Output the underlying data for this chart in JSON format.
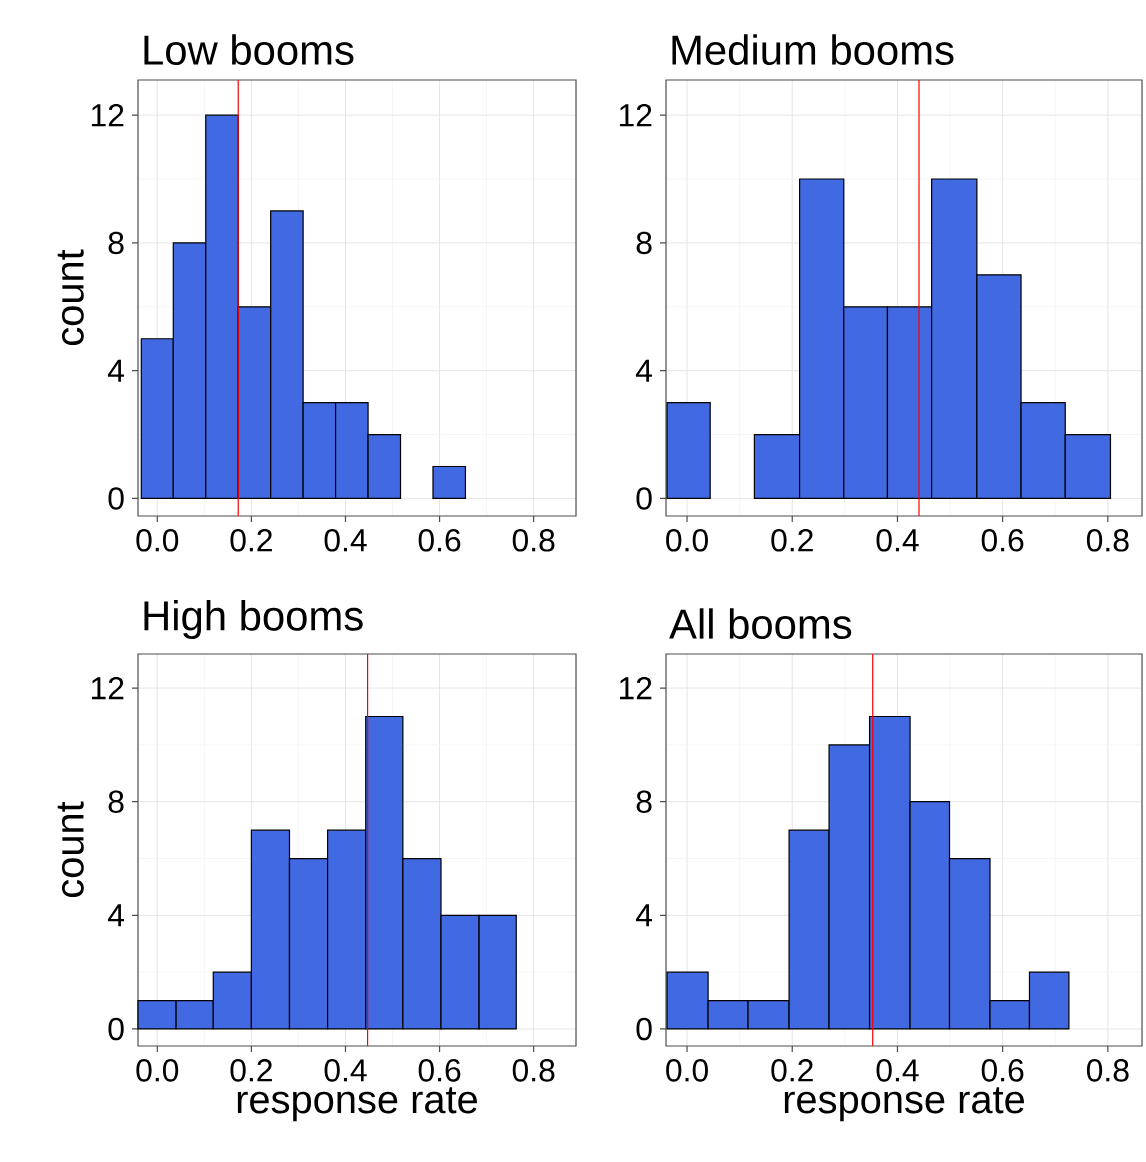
{
  "chart_data": [
    {
      "type": "histogram",
      "title": "Low booms",
      "ylabel": "count",
      "color": "#4169e1",
      "grid": true,
      "bins": [
        -0.034,
        0.034,
        0.103,
        0.172,
        0.241,
        0.31,
        0.379,
        0.448,
        0.517,
        0.586,
        0.655
      ],
      "values": [
        5,
        8,
        12,
        6,
        9,
        3,
        3,
        2,
        0,
        1
      ],
      "xlim": [
        -0.041,
        0.89
      ],
      "ylim": [
        -0.55,
        13.1
      ],
      "xticks": [
        {
          "value": 0,
          "label": "0.0"
        },
        {
          "value": 0.2,
          "label": "0.2"
        },
        {
          "value": 0.4,
          "label": "0.4"
        },
        {
          "value": 0.6,
          "label": "0.6"
        },
        {
          "value": 0.8,
          "label": "0.8"
        }
      ],
      "yticks": [
        0,
        4,
        8,
        12
      ],
      "ref_lines": [
        {
          "axis": "x",
          "value": 0.172,
          "color": "#ff0000"
        }
      ]
    },
    {
      "type": "histogram",
      "title": "Medium booms",
      "color": "#4169e1",
      "grid": true,
      "bins": [
        -0.038,
        0.044,
        0.128,
        0.214,
        0.298,
        0.381,
        0.465,
        0.551,
        0.635,
        0.719,
        0.805
      ],
      "values": [
        3,
        0,
        2,
        10,
        6,
        6,
        10,
        7,
        3,
        2
      ],
      "xlim": [
        -0.04,
        0.865
      ],
      "ylim": [
        -0.55,
        13.1
      ],
      "xticks": [
        {
          "value": 0,
          "label": "0.0"
        },
        {
          "value": 0.2,
          "label": "0.2"
        },
        {
          "value": 0.4,
          "label": "0.4"
        },
        {
          "value": 0.6,
          "label": "0.6"
        },
        {
          "value": 0.8,
          "label": "0.8"
        }
      ],
      "yticks": [
        0,
        4,
        8,
        12
      ],
      "ref_lines": [
        {
          "axis": "x",
          "value": 0.441,
          "color": "#ff0000"
        }
      ]
    },
    {
      "type": "histogram",
      "title": "High booms",
      "xlabel": "response rate",
      "ylabel": "count",
      "color": "#4169e1",
      "grid": true,
      "bins": [
        -0.041,
        0.04,
        0.119,
        0.2,
        0.281,
        0.362,
        0.443,
        0.522,
        0.603,
        0.684,
        0.763
      ],
      "values": [
        1,
        1,
        2,
        7,
        6,
        7,
        11,
        6,
        4,
        4
      ],
      "xlim": [
        -0.041,
        0.89
      ],
      "ylim": [
        -0.6,
        13.2
      ],
      "xticks": [
        {
          "value": 0,
          "label": "0.0"
        },
        {
          "value": 0.2,
          "label": "0.2"
        },
        {
          "value": 0.4,
          "label": "0.4"
        },
        {
          "value": 0.6,
          "label": "0.6"
        },
        {
          "value": 0.8,
          "label": "0.8"
        }
      ],
      "yticks": [
        0,
        4,
        8,
        12
      ],
      "ref_lines": [
        {
          "axis": "x",
          "value": 0.447,
          "color": "#ff0000"
        }
      ]
    },
    {
      "type": "histogram",
      "title": "All booms",
      "xlabel": "response rate",
      "color": "#4169e1",
      "grid": true,
      "bins": [
        -0.038,
        0.04,
        0.116,
        0.194,
        0.27,
        0.347,
        0.424,
        0.499,
        0.576,
        0.651,
        0.726
      ],
      "values": [
        2,
        1,
        1,
        7,
        10,
        11,
        8,
        6,
        1,
        2
      ],
      "xlim": [
        -0.04,
        0.865
      ],
      "ylim": [
        -0.6,
        13.2
      ],
      "xticks": [
        {
          "value": 0,
          "label": "0.0"
        },
        {
          "value": 0.2,
          "label": "0.2"
        },
        {
          "value": 0.4,
          "label": "0.4"
        },
        {
          "value": 0.6,
          "label": "0.6"
        },
        {
          "value": 0.8,
          "label": "0.8"
        }
      ],
      "yticks": [
        0,
        4,
        8,
        12
      ],
      "ref_lines": [
        {
          "axis": "x",
          "value": 0.353,
          "color": "#ff0000"
        }
      ]
    }
  ]
}
